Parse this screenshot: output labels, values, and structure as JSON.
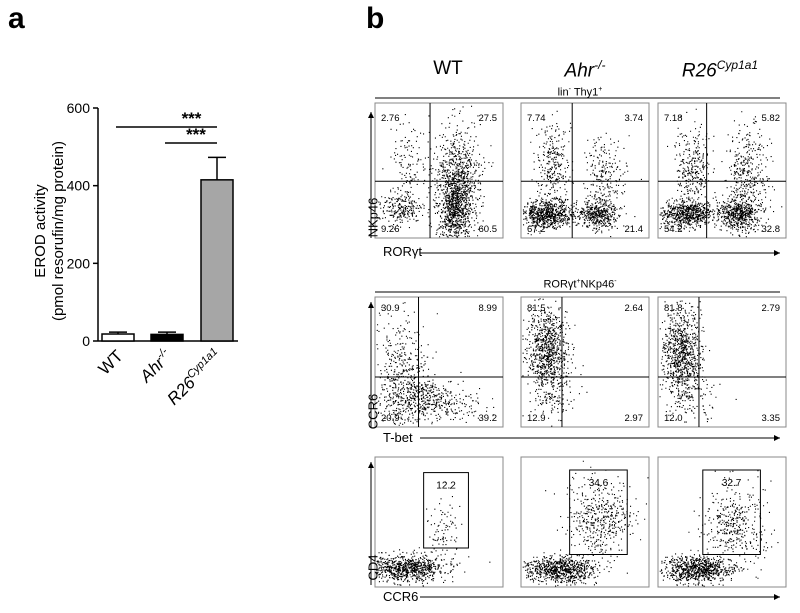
{
  "panels": {
    "a": {
      "letter": "a"
    },
    "b": {
      "letter": "b"
    }
  },
  "chart_data": [
    {
      "type": "bar",
      "panel": "a",
      "title": "",
      "ylabel_line1": "EROD activity",
      "ylabel_line2": "(pmol resorufin/mg protein)",
      "xlabel": "",
      "ylim": [
        0,
        600
      ],
      "yticks": [
        "0",
        "200",
        "400",
        "600"
      ],
      "categories": [
        "WT",
        "Ahr-/-",
        "R26Cyp1a1"
      ],
      "category_labels": [
        {
          "base": "WT",
          "sup": ""
        },
        {
          "base": "Ahr",
          "sup": "-/-"
        },
        {
          "base": "R26",
          "sup": "Cyp1a1"
        }
      ],
      "values": [
        18,
        17,
        415
      ],
      "errors": [
        5,
        6,
        58
      ],
      "bar_colors": [
        "#ffffff",
        "#000000",
        "#a6a6a6"
      ],
      "significance": [
        {
          "from": "WT",
          "to": "R26Cyp1a1",
          "label": "***"
        },
        {
          "from": "Ahr-/-",
          "to": "R26Cyp1a1",
          "label": "***"
        }
      ]
    },
    {
      "type": "scatter",
      "panel": "b",
      "columns": [
        {
          "base": "WT",
          "sup": ""
        },
        {
          "base": "Ahr",
          "sup": "-/-"
        },
        {
          "base": "R26",
          "sup": "Cyp1a1"
        }
      ],
      "rows": [
        {
          "gate": {
            "pre": "lin",
            "pre_sup": "-",
            "post": " Thy1",
            "post_sup": "+"
          },
          "ylabel": "NKp46",
          "xlabel": "RORγt",
          "quadrants": [
            {
              "ul": "2.76",
              "ur": "27.5",
              "ll": "9.26",
              "lr": "60.5"
            },
            {
              "ul": "7.74",
              "ur": "3.74",
              "ll": "67.2",
              "lr": "21.4"
            },
            {
              "ul": "7.18",
              "ur": "5.82",
              "ll": "54.2",
              "lr": "32.8"
            }
          ]
        },
        {
          "gate": {
            "pre": "RORγt",
            "pre_sup": "+",
            "post": "NKp46",
            "post_sup": "-"
          },
          "ylabel": "CCR6",
          "xlabel": "T-bet",
          "quadrants": [
            {
              "ul": "30.9",
              "ur": "8.99",
              "ll": "20.9",
              "lr": "39.2"
            },
            {
              "ul": "81.5",
              "ur": "2.64",
              "ll": "12.9",
              "lr": "2.97"
            },
            {
              "ul": "81.8",
              "ur": "2.79",
              "ll": "12.0",
              "lr": "3.35"
            }
          ]
        },
        {
          "gate": null,
          "ylabel": "CD4",
          "xlabel": "CCR6",
          "gate_values": [
            "12.2",
            "34.6",
            "32.7"
          ]
        }
      ]
    }
  ]
}
